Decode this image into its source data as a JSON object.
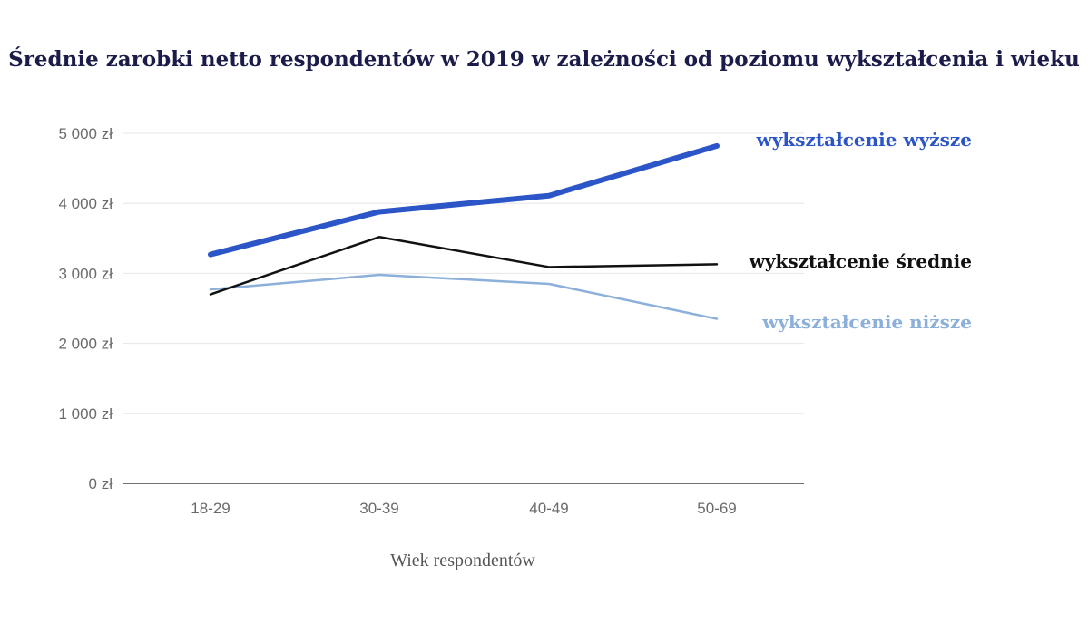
{
  "chart_data": {
    "type": "line",
    "title": "Średnie zarobki netto respondentów w 2019 w zależności od poziomu wykształcenia i wieku",
    "xlabel": "Wiek respondentów",
    "ylabel": "",
    "categories": [
      "18-29",
      "30-39",
      "40-49",
      "50-69"
    ],
    "yticks": [
      "0 zł",
      "1 000 zł",
      "2 000 zł",
      "3 000 zł",
      "4 000 zł",
      "5 000 zł"
    ],
    "ylim": [
      0,
      5000
    ],
    "grid": true,
    "series": [
      {
        "name": "wykształcenie wyższe",
        "values": [
          3270,
          3880,
          4110,
          4820
        ],
        "color": "#2c56c8"
      },
      {
        "name": "wykształcenie średnie",
        "values": [
          2700,
          3520,
          3090,
          3130
        ],
        "color": "#111111"
      },
      {
        "name": "wykształcenie niższe",
        "values": [
          2770,
          2980,
          2850,
          2350
        ],
        "color": "#8cb0da"
      }
    ]
  }
}
